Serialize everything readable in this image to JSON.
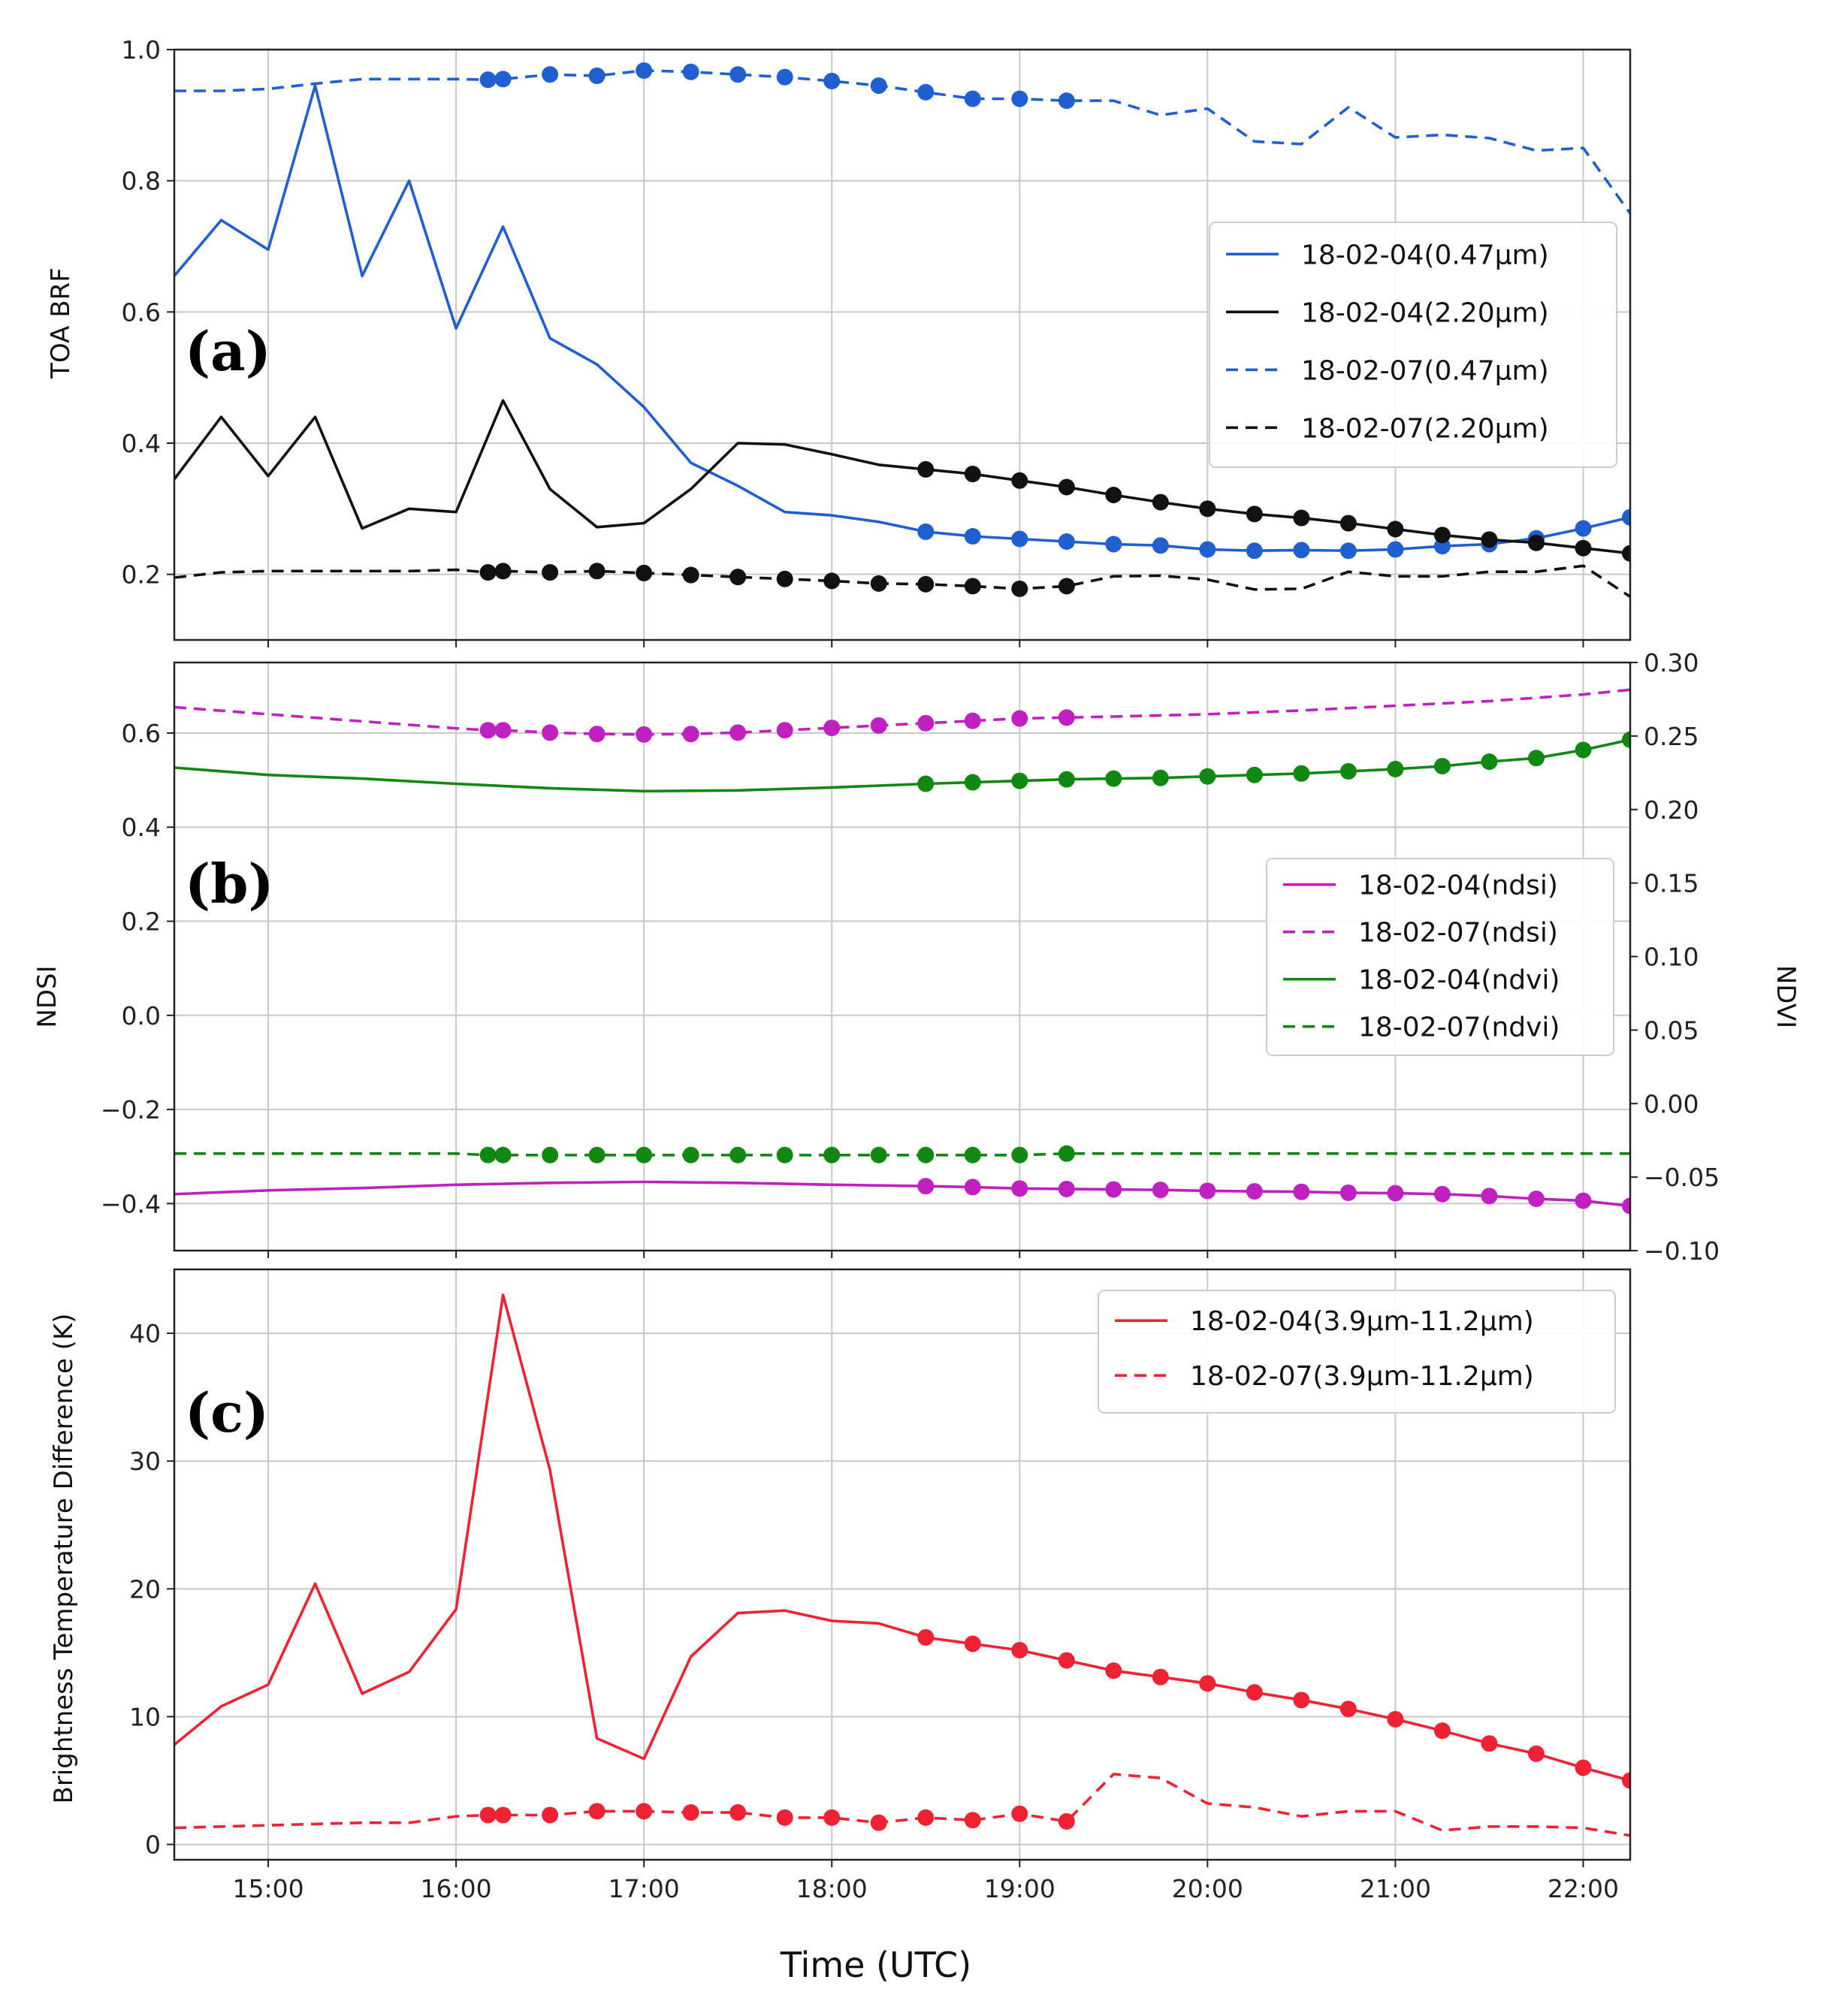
{
  "chart_data": [
    {
      "id": "a",
      "type": "line",
      "panel_label": "(a)",
      "ylabel": "TOA BRF",
      "ylim": [
        0.1,
        1.0
      ],
      "yticks": [
        0.2,
        0.4,
        0.6,
        0.8,
        1.0
      ],
      "ytick_labels": [
        "0.2",
        "0.4",
        "0.6",
        "0.8",
        "1.0"
      ],
      "legend_position": "center-right",
      "series": [
        {
          "name": "18-02-04(0.47μm)",
          "color": "#1f5fd0",
          "style": "solid",
          "marker_from": 18.5,
          "x": [
            14.5,
            14.75,
            15,
            15.25,
            15.5,
            15.75,
            16,
            16.25,
            16.5,
            16.75,
            17,
            17.25,
            17.5,
            17.75,
            18,
            18.25,
            18.5,
            18.75,
            19,
            19.25,
            19.5,
            19.75,
            20,
            20.25,
            20.5,
            20.75,
            21,
            21.25,
            21.5,
            21.75,
            22,
            22.25
          ],
          "y": [
            0.655,
            0.74,
            0.695,
            0.945,
            0.655,
            0.8,
            0.575,
            0.73,
            0.56,
            0.52,
            0.455,
            0.37,
            0.335,
            0.295,
            0.29,
            0.28,
            0.265,
            0.258,
            0.254,
            0.25,
            0.246,
            0.244,
            0.238,
            0.236,
            0.237,
            0.236,
            0.238,
            0.243,
            0.246,
            0.255,
            0.27,
            0.287
          ]
        },
        {
          "name": "18-02-04(2.20μm)",
          "color": "#111111",
          "style": "solid",
          "marker_from": 18.5,
          "x": [
            14.5,
            14.75,
            15,
            15.25,
            15.5,
            15.75,
            16,
            16.25,
            16.5,
            16.75,
            17,
            17.25,
            17.5,
            17.75,
            18,
            18.25,
            18.5,
            18.75,
            19,
            19.25,
            19.5,
            19.75,
            20,
            20.25,
            20.5,
            20.75,
            21,
            21.25,
            21.5,
            21.75,
            22,
            22.25
          ],
          "y": [
            0.345,
            0.44,
            0.35,
            0.44,
            0.27,
            0.3,
            0.295,
            0.465,
            0.33,
            0.272,
            0.278,
            0.33,
            0.4,
            0.398,
            0.383,
            0.367,
            0.36,
            0.353,
            0.343,
            0.333,
            0.321,
            0.31,
            0.3,
            0.292,
            0.286,
            0.278,
            0.269,
            0.26,
            0.253,
            0.248,
            0.24,
            0.232
          ]
        },
        {
          "name": "18-02-07(0.47μm)",
          "color": "#1f5fd0",
          "style": "dashed",
          "marker_from": 16.17,
          "marker_to": 19.25,
          "x": [
            14.5,
            14.75,
            15,
            15.25,
            15.5,
            15.75,
            16,
            16.17,
            16.25,
            16.5,
            16.75,
            17,
            17.25,
            17.5,
            17.75,
            18,
            18.25,
            18.5,
            18.75,
            19,
            19.25,
            19.5,
            19.75,
            20,
            20.25,
            20.5,
            20.75,
            21,
            21.25,
            21.5,
            21.75,
            22,
            22.25
          ],
          "y": [
            0.937,
            0.937,
            0.94,
            0.948,
            0.955,
            0.955,
            0.955,
            0.954,
            0.955,
            0.962,
            0.96,
            0.968,
            0.966,
            0.962,
            0.958,
            0.952,
            0.945,
            0.935,
            0.925,
            0.925,
            0.922,
            0.922,
            0.9,
            0.91,
            0.86,
            0.856,
            0.912,
            0.866,
            0.87,
            0.865,
            0.846,
            0.85,
            0.75
          ]
        },
        {
          "name": "18-02-07(2.20μm)",
          "color": "#111111",
          "style": "dashed",
          "marker_from": 16.17,
          "marker_to": 19.25,
          "x": [
            14.5,
            14.75,
            15,
            15.25,
            15.5,
            15.75,
            16,
            16.17,
            16.25,
            16.5,
            16.75,
            17,
            17.25,
            17.5,
            17.75,
            18,
            18.25,
            18.5,
            18.75,
            19,
            19.25,
            19.5,
            19.75,
            20,
            20.25,
            20.5,
            20.75,
            21,
            21.25,
            21.5,
            21.75,
            22,
            22.25
          ],
          "y": [
            0.195,
            0.203,
            0.205,
            0.205,
            0.205,
            0.205,
            0.207,
            0.203,
            0.205,
            0.203,
            0.205,
            0.202,
            0.199,
            0.196,
            0.193,
            0.19,
            0.186,
            0.185,
            0.182,
            0.178,
            0.182,
            0.197,
            0.198,
            0.192,
            0.177,
            0.178,
            0.204,
            0.197,
            0.197,
            0.204,
            0.204,
            0.213,
            0.166
          ]
        }
      ]
    },
    {
      "id": "b",
      "type": "line",
      "panel_label": "(b)",
      "ylabel": "NDSI",
      "ylabel_right": "NDVI",
      "ylim": [
        -0.5,
        0.75
      ],
      "yticks": [
        -0.4,
        -0.2,
        0.0,
        0.2,
        0.4,
        0.6
      ],
      "ytick_labels": [
        "−0.4",
        "−0.2",
        "0.0",
        "0.2",
        "0.4",
        "0.6"
      ],
      "ylim_right": [
        -0.1,
        0.3
      ],
      "yticks_right": [
        -0.1,
        -0.05,
        0.0,
        0.05,
        0.1,
        0.15,
        0.2,
        0.25,
        0.3
      ],
      "ytick_labels_right": [
        "−0.10",
        "−0.05",
        "0.00",
        "0.05",
        "0.10",
        "0.15",
        "0.20",
        "0.25",
        "0.30"
      ],
      "legend_position": "center-right",
      "series": [
        {
          "name": "18-02-04(ndsi)",
          "color": "#c020c0",
          "style": "solid",
          "axis": "left",
          "marker_from": 18.5,
          "x": [
            14.5,
            15,
            15.5,
            16,
            16.5,
            17,
            17.5,
            18,
            18.5,
            18.75,
            19,
            19.25,
            19.5,
            19.75,
            20,
            20.25,
            20.5,
            20.75,
            21,
            21.25,
            21.5,
            21.75,
            22,
            22.25
          ],
          "y": [
            -0.38,
            -0.372,
            -0.367,
            -0.36,
            -0.356,
            -0.354,
            -0.356,
            -0.36,
            -0.363,
            -0.365,
            -0.368,
            -0.369,
            -0.37,
            -0.371,
            -0.373,
            -0.374,
            -0.375,
            -0.377,
            -0.378,
            -0.38,
            -0.384,
            -0.39,
            -0.394,
            -0.405
          ]
        },
        {
          "name": "18-02-07(ndsi)",
          "color": "#c020c0",
          "style": "dashed",
          "axis": "left",
          "marker_from": 16.17,
          "marker_to": 19.25,
          "x": [
            14.5,
            15,
            15.5,
            16,
            16.17,
            16.25,
            16.5,
            16.75,
            17,
            17.25,
            17.5,
            17.75,
            18,
            18.25,
            18.5,
            18.75,
            19,
            19.25,
            19.5,
            20,
            20.5,
            21,
            21.5,
            22,
            22.25
          ],
          "y": [
            0.655,
            0.64,
            0.625,
            0.61,
            0.606,
            0.606,
            0.601,
            0.598,
            0.597,
            0.598,
            0.601,
            0.606,
            0.611,
            0.616,
            0.621,
            0.626,
            0.631,
            0.633,
            0.635,
            0.64,
            0.648,
            0.658,
            0.668,
            0.682,
            0.692
          ]
        },
        {
          "name": "18-02-04(ndvi)",
          "color": "#118811",
          "style": "solid",
          "axis": "right",
          "marker_from": 18.5,
          "x": [
            14.5,
            15,
            15.5,
            16,
            16.5,
            17,
            17.5,
            18,
            18.5,
            18.75,
            19,
            19.25,
            19.5,
            19.75,
            20,
            20.25,
            20.5,
            20.75,
            21,
            21.25,
            21.5,
            21.75,
            22,
            22.25
          ],
          "y": [
            0.2285,
            0.2235,
            0.221,
            0.2175,
            0.2145,
            0.2125,
            0.213,
            0.215,
            0.2175,
            0.2185,
            0.2195,
            0.2205,
            0.221,
            0.2215,
            0.2225,
            0.2235,
            0.2245,
            0.226,
            0.2275,
            0.2295,
            0.2325,
            0.235,
            0.2405,
            0.2475
          ]
        },
        {
          "name": "18-02-07(ndvi)",
          "color": "#118811",
          "style": "dashed",
          "axis": "right",
          "marker_from": 16.17,
          "marker_to": 19.25,
          "x": [
            14.5,
            15,
            15.5,
            16,
            16.17,
            16.25,
            16.5,
            16.75,
            17,
            17.25,
            17.5,
            17.75,
            18,
            18.25,
            18.5,
            18.75,
            19,
            19.25,
            19.5,
            20,
            20.5,
            21,
            21.5,
            22,
            22.25
          ],
          "y": [
            -0.034,
            -0.034,
            -0.034,
            -0.034,
            -0.035,
            -0.035,
            -0.035,
            -0.035,
            -0.035,
            -0.035,
            -0.035,
            -0.035,
            -0.035,
            -0.035,
            -0.035,
            -0.035,
            -0.035,
            -0.034,
            -0.034,
            -0.034,
            -0.034,
            -0.034,
            -0.034,
            -0.034,
            -0.034
          ]
        }
      ]
    },
    {
      "id": "c",
      "type": "line",
      "panel_label": "(c)",
      "ylabel": "Brightness Temperature Difference (K)",
      "xlabel": "Time (UTC)",
      "ylim": [
        -1.2,
        45
      ],
      "yticks": [
        0,
        10,
        20,
        30,
        40
      ],
      "ytick_labels": [
        "0",
        "10",
        "20",
        "30",
        "40"
      ],
      "xlim": [
        14.5,
        22.25
      ],
      "xticks": [
        15,
        16,
        17,
        18,
        19,
        20,
        21,
        22
      ],
      "xtick_labels": [
        "15:00",
        "16:00",
        "17:00",
        "18:00",
        "19:00",
        "20:00",
        "21:00",
        "22:00"
      ],
      "legend_position": "top-right",
      "series": [
        {
          "name": "18-02-04(3.9μm-11.2μm)",
          "color": "#ee2233",
          "style": "solid",
          "marker_from": 18.5,
          "x": [
            14.5,
            14.75,
            15,
            15.25,
            15.5,
            15.75,
            16,
            16.25,
            16.5,
            16.75,
            17,
            17.25,
            17.5,
            17.75,
            18,
            18.25,
            18.5,
            18.75,
            19,
            19.25,
            19.5,
            19.75,
            20,
            20.25,
            20.5,
            20.75,
            21,
            21.25,
            21.5,
            21.75,
            22,
            22.25
          ],
          "y": [
            7.8,
            10.8,
            12.5,
            20.4,
            11.8,
            13.5,
            18.4,
            43,
            29.3,
            8.3,
            6.7,
            14.7,
            18.1,
            18.3,
            17.5,
            17.3,
            16.2,
            15.7,
            15.2,
            14.4,
            13.6,
            13.1,
            12.6,
            11.9,
            11.3,
            10.6,
            9.8,
            8.9,
            7.9,
            7.1,
            6.0,
            5.0
          ]
        },
        {
          "name": "18-02-07(3.9μm-11.2μm)",
          "color": "#ee2233",
          "style": "dashed",
          "marker_from": 16.17,
          "marker_to": 19.25,
          "x": [
            14.5,
            14.75,
            15,
            15.25,
            15.5,
            15.75,
            16,
            16.17,
            16.25,
            16.5,
            16.75,
            17,
            17.25,
            17.5,
            17.75,
            18,
            18.25,
            18.5,
            18.75,
            19,
            19.25,
            19.5,
            19.75,
            20,
            20.25,
            20.5,
            20.75,
            21,
            21.25,
            21.5,
            21.75,
            22,
            22.25
          ],
          "y": [
            1.3,
            1.4,
            1.5,
            1.6,
            1.7,
            1.7,
            2.2,
            2.3,
            2.3,
            2.3,
            2.6,
            2.6,
            2.5,
            2.5,
            2.1,
            2.1,
            1.7,
            2.1,
            1.9,
            2.4,
            1.8,
            5.5,
            5.2,
            3.2,
            2.9,
            2.2,
            2.6,
            2.6,
            1.1,
            1.4,
            1.4,
            1.3,
            0.7
          ]
        }
      ]
    }
  ]
}
